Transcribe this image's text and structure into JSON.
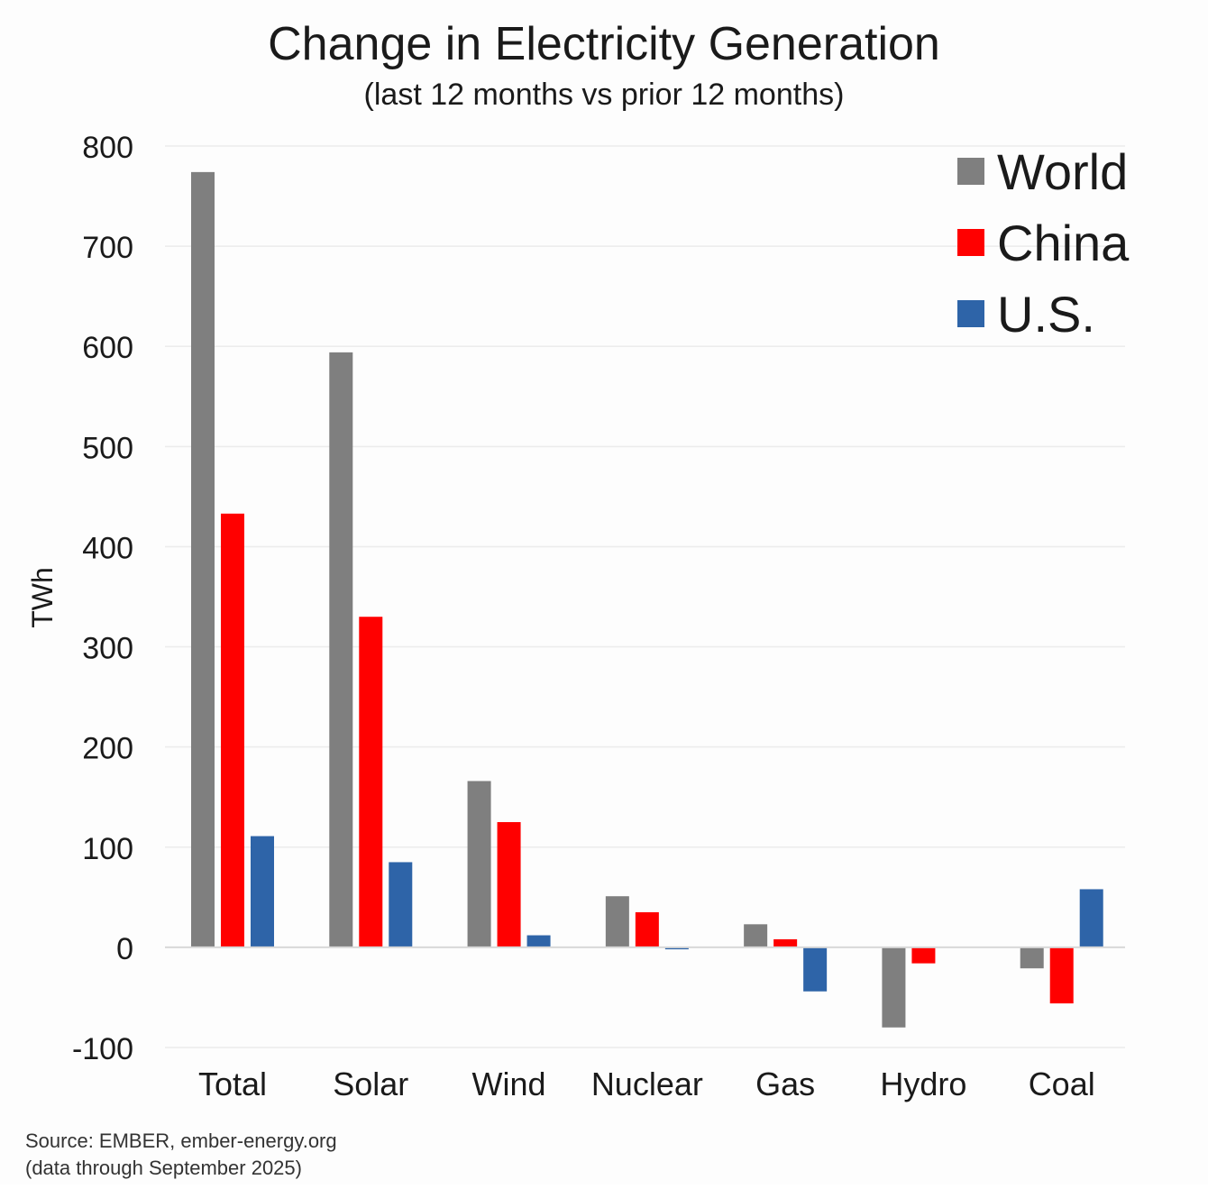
{
  "chart_data": {
    "type": "bar",
    "title": "Change in Electricity Generation",
    "subtitle": "(last 12 months vs prior 12 months)",
    "xlabel": "",
    "ylabel": "TWh",
    "ylim": [
      -100,
      800
    ],
    "yticks": [
      800,
      700,
      600,
      500,
      400,
      300,
      200,
      100,
      0,
      -100
    ],
    "grid": true,
    "legend_position": "top-right",
    "categories": [
      "Total",
      "Solar",
      "Wind",
      "Nuclear",
      "Gas",
      "Hydro",
      "Coal"
    ],
    "series": [
      {
        "name": "World",
        "color": "#7f7f7f",
        "values": [
          774,
          594,
          166,
          51,
          23,
          -80,
          -21
        ]
      },
      {
        "name": "China",
        "color": "#ff0000",
        "values": [
          433,
          330,
          125,
          35,
          8,
          -16,
          -56
        ]
      },
      {
        "name": "U.S.",
        "color": "#2e64a8",
        "values": [
          111,
          85,
          12,
          -2,
          -44,
          0,
          58
        ]
      }
    ]
  },
  "footer": {
    "source": "Source: EMBER, ember-energy.org",
    "note": "(data through September 2025)"
  },
  "colors": {
    "grid": "#ececec",
    "axis": "#d8d8d8",
    "text": "#1a1a1a"
  }
}
